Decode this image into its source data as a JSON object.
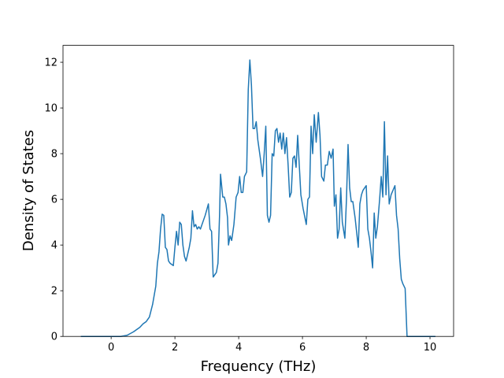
{
  "chart_data": {
    "type": "line",
    "xlabel": "Frequency (THz)",
    "ylabel": "Density of States",
    "xlim": [
      -1.51,
      10.74
    ],
    "ylim": [
      0,
      12.74
    ],
    "xticks": [
      0,
      2,
      4,
      6,
      8,
      10
    ],
    "yticks": [
      0,
      2,
      4,
      6,
      8,
      10,
      12
    ],
    "grid": false,
    "x": [
      -0.95,
      0,
      0.3,
      0.5,
      0.7,
      0.9,
      1.0,
      1.1,
      1.2,
      1.3,
      1.4,
      1.45,
      1.5,
      1.55,
      1.6,
      1.65,
      1.7,
      1.75,
      1.8,
      1.85,
      1.95,
      2.0,
      2.05,
      2.1,
      2.15,
      2.2,
      2.25,
      2.3,
      2.35,
      2.45,
      2.5,
      2.55,
      2.6,
      2.65,
      2.7,
      2.75,
      2.8,
      2.85,
      2.95,
      3.05,
      3.1,
      3.15,
      3.2,
      3.3,
      3.35,
      3.4,
      3.43,
      3.5,
      3.55,
      3.6,
      3.65,
      3.68,
      3.73,
      3.78,
      3.85,
      3.92,
      3.98,
      4.03,
      4.08,
      4.13,
      4.18,
      4.25,
      4.3,
      4.35,
      4.4,
      4.45,
      4.5,
      4.55,
      4.6,
      4.68,
      4.75,
      4.8,
      4.85,
      4.9,
      4.95,
      5.0,
      5.05,
      5.1,
      5.15,
      5.2,
      5.25,
      5.3,
      5.35,
      5.4,
      5.45,
      5.5,
      5.55,
      5.6,
      5.65,
      5.7,
      5.75,
      5.8,
      5.85,
      5.9,
      5.95,
      6.02,
      6.12,
      6.17,
      6.22,
      6.27,
      6.32,
      6.37,
      6.43,
      6.5,
      6.55,
      6.6,
      6.67,
      6.72,
      6.78,
      6.84,
      6.9,
      6.96,
      7.0,
      7.05,
      7.1,
      7.15,
      7.2,
      7.25,
      7.33,
      7.38,
      7.43,
      7.48,
      7.53,
      7.58,
      7.65,
      7.75,
      7.8,
      7.85,
      7.9,
      8.0,
      8.05,
      8.1,
      8.15,
      8.2,
      8.25,
      8.3,
      8.35,
      8.42,
      8.47,
      8.52,
      8.57,
      8.62,
      8.67,
      8.72,
      8.78,
      8.84,
      8.9,
      8.95,
      9.0,
      9.05,
      9.1,
      9.15,
      9.22,
      9.28,
      9.5,
      10.17
    ],
    "series": [
      {
        "color": "#1f77b4",
        "values": [
          0,
          0,
          0,
          0.05,
          0.2,
          0.4,
          0.55,
          0.65,
          0.85,
          1.4,
          2.2,
          3.2,
          3.7,
          4.7,
          5.35,
          5.3,
          3.9,
          3.8,
          3.3,
          3.2,
          3.1,
          3.9,
          4.6,
          4.0,
          5.0,
          4.9,
          4.0,
          3.5,
          3.3,
          3.9,
          4.3,
          5.5,
          4.8,
          4.9,
          4.7,
          4.8,
          4.7,
          4.9,
          5.3,
          5.8,
          4.7,
          4.6,
          2.6,
          2.8,
          3.2,
          5.3,
          7.1,
          6.1,
          6.1,
          5.8,
          5.2,
          4.0,
          4.4,
          4.2,
          4.9,
          6.1,
          6.3,
          7.0,
          6.3,
          6.3,
          7.0,
          7.2,
          10.8,
          12.1,
          11.0,
          9.1,
          9.1,
          9.4,
          8.6,
          7.8,
          7.0,
          8.0,
          9.2,
          5.3,
          5.0,
          5.3,
          8.0,
          7.9,
          9.0,
          9.1,
          8.5,
          8.9,
          8.2,
          8.9,
          8.0,
          8.7,
          7.5,
          6.1,
          6.3,
          7.8,
          7.9,
          7.4,
          8.8,
          7.5,
          6.2,
          5.6,
          4.9,
          6.0,
          6.1,
          9.2,
          8.0,
          9.7,
          8.5,
          9.8,
          8.8,
          7.0,
          6.8,
          7.5,
          7.5,
          8.1,
          7.8,
          8.2,
          5.7,
          6.2,
          4.3,
          4.7,
          6.5,
          5.0,
          4.3,
          6.0,
          8.4,
          6.5,
          5.9,
          5.9,
          5.2,
          3.9,
          5.8,
          6.2,
          6.4,
          6.6,
          4.7,
          4.3,
          3.7,
          3.0,
          5.4,
          4.3,
          4.8,
          6.0,
          7.0,
          6.1,
          9.4,
          6.2,
          7.9,
          5.8,
          6.2,
          6.4,
          6.6,
          5.3,
          4.7,
          3.4,
          2.5,
          2.3,
          2.1,
          0,
          0,
          0
        ]
      }
    ]
  }
}
